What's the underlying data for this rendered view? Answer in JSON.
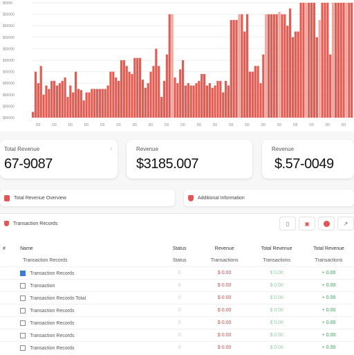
{
  "chart_data": {
    "type": "bar",
    "ytick_labels": [
      "$0000",
      "$00000",
      "$00000",
      "$00000",
      "$00000",
      "$00000",
      "$00000",
      "$00000",
      "$00000",
      "$00000",
      "$00000"
    ],
    "xtick_labels": [
      "D0",
      "D0",
      "D0",
      "D0",
      "D0",
      "D0",
      "D0",
      "D0",
      "D0",
      "D0",
      "D0",
      "D0",
      "D0",
      "D0",
      "D0",
      "D0",
      "D0",
      "D0",
      "D0",
      "D0"
    ],
    "values": [
      5,
      40,
      30,
      45,
      20,
      28,
      25,
      32,
      32,
      28,
      30,
      32,
      35,
      18,
      28,
      22,
      40,
      25,
      24,
      15,
      22,
      22,
      25,
      25,
      25,
      25,
      25,
      25,
      28,
      40,
      40,
      35,
      32,
      50,
      50,
      45,
      40,
      38,
      52,
      52,
      52,
      33,
      26,
      30,
      40,
      45,
      60,
      45,
      18,
      32,
      55,
      90,
      90,
      35,
      30,
      42,
      50,
      28,
      30,
      28,
      28,
      30,
      32,
      38,
      38,
      28,
      30,
      26,
      28,
      32,
      32,
      22,
      32,
      28,
      85,
      85,
      85,
      90,
      90,
      75,
      90,
      40,
      40,
      45,
      45,
      30,
      55,
      90,
      90,
      90,
      90,
      90,
      92,
      90,
      90,
      80,
      95,
      70,
      75,
      75,
      100,
      100,
      100,
      100,
      100,
      100,
      70,
      85,
      100,
      100,
      100,
      55,
      100,
      100,
      100,
      100,
      100,
      100,
      100,
      100
    ],
    "ylim": [
      0,
      100
    ],
    "colors": {
      "bar": "#e85a4f",
      "bar_light": "#f3a59c"
    }
  },
  "cards": [
    {
      "label": "Total Revenue",
      "value": "67-9087"
    },
    {
      "label": "Revenue",
      "value": "$3185.007"
    },
    {
      "label": "Revenue",
      "value": "$.57-0049"
    }
  ],
  "pills": [
    {
      "label": "Total Revenue Overview"
    },
    {
      "label": "Additional Information"
    }
  ],
  "panel": {
    "title": "Transaction Records",
    "tools": [
      {
        "icon": "document-icon"
      },
      {
        "icon": "calendar-icon"
      },
      {
        "icon": "record-icon"
      },
      {
        "icon": "link-icon"
      }
    ]
  },
  "table": {
    "headers": [
      "#",
      "Name",
      "Status",
      "Revenue",
      "Total Revenue",
      "Total Revenue"
    ],
    "subheaders": [
      "",
      "Transaction Records",
      "Status",
      "Transactions",
      "Transactions",
      "Transactions"
    ],
    "rows": [
      {
        "checked": true,
        "name": "Transaction Records",
        "a": "0",
        "b": "$ 0.00",
        "c": "$ 0.00",
        "d": "+ 0.00"
      },
      {
        "checked": false,
        "name": "Transaction",
        "a": "0",
        "b": "$ 0.00",
        "c": "$ 0.00",
        "d": "+ 0.00"
      },
      {
        "checked": false,
        "name": "Transaction Records Total",
        "a": "0",
        "b": "$ 0.00",
        "c": "$ 0.00",
        "d": "+ 0.00"
      },
      {
        "checked": false,
        "name": "Transaction Records",
        "a": "0",
        "b": "$ 0.00",
        "c": "$ 0.00",
        "d": "+ 0.00"
      },
      {
        "checked": false,
        "name": "Transaction Records",
        "a": "0",
        "b": "$ 0.00",
        "c": "$ 0.00",
        "d": "+ 0.00"
      },
      {
        "checked": false,
        "name": "Transaction Records",
        "a": "0",
        "b": "$ 0.00",
        "c": "$ 0.00",
        "d": "+ 0.00"
      },
      {
        "checked": false,
        "name": "Transaction Records",
        "a": "0",
        "b": "$ 0.00",
        "c": "$ 0.00",
        "d": "+ 0.00"
      }
    ]
  }
}
